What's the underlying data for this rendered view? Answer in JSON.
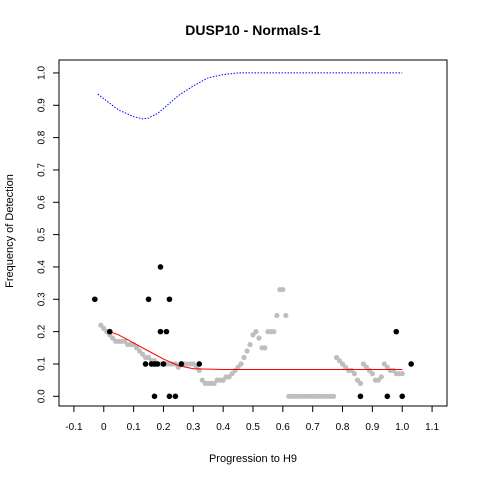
{
  "chart_data": {
    "type": "scatter",
    "title": "DUSP10 - Normals-1",
    "xlabel": "Progression to H9",
    "ylabel": "Frequency of Detection",
    "xlim": [
      -0.15,
      1.15
    ],
    "ylim": [
      -0.03,
      1.04
    ],
    "x_ticks": [
      -0.1,
      0,
      0.1,
      0.2,
      0.3,
      0.4,
      0.5,
      0.6,
      0.7,
      0.8,
      0.9,
      1.0,
      1.1
    ],
    "x_tick_labels": [
      "-0.1",
      "0",
      "0.1",
      "0.2",
      "0.3",
      "0.4",
      "0.5",
      "0.6",
      "0.7",
      "0.8",
      "0.9",
      "1.0",
      "1.1"
    ],
    "y_ticks": [
      0,
      0.1,
      0.2,
      0.3,
      0.4,
      0.5,
      0.6,
      0.7,
      0.8,
      0.9,
      1.0
    ],
    "y_tick_labels": [
      "0.0",
      "0.1",
      "0.2",
      "0.3",
      "0.4",
      "0.5",
      "0.6",
      "0.7",
      "0.8",
      "0.9",
      "1.0"
    ],
    "grid": false,
    "colors": {
      "points": "#000000",
      "smoothed_points": "#bebebe",
      "fit_line": "#ff0000",
      "upper_curve": "#0000ff"
    },
    "series": [
      {
        "kind": "points",
        "x": [
          -0.03,
          0.02,
          0.14,
          0.15,
          0.16,
          0.17,
          0.17,
          0.18,
          0.19,
          0.19,
          0.2,
          0.21,
          0.22,
          0.22,
          0.24,
          0.26,
          0.32,
          0.86,
          0.95,
          0.98,
          1.0,
          1.03
        ],
        "y": [
          0.3,
          0.2,
          0.1,
          0.3,
          0.1,
          0.0,
          0.1,
          0.1,
          0.4,
          0.2,
          0.1,
          0.2,
          0.3,
          0.0,
          0.0,
          0.1,
          0.1,
          0.0,
          0.0,
          0.2,
          0.0,
          0.1
        ]
      },
      {
        "kind": "smoothed_points",
        "x": [
          -0.01,
          0.0,
          0.01,
          0.02,
          0.03,
          0.04,
          0.05,
          0.06,
          0.07,
          0.08,
          0.09,
          0.1,
          0.11,
          0.12,
          0.13,
          0.14,
          0.15,
          0.16,
          0.17,
          0.18,
          0.19,
          0.2,
          0.21,
          0.22,
          0.23,
          0.24,
          0.25,
          0.26,
          0.27,
          0.28,
          0.29,
          0.3,
          0.31,
          0.32,
          0.33,
          0.34,
          0.35,
          0.36,
          0.37,
          0.38,
          0.39,
          0.4,
          0.41,
          0.42,
          0.43,
          0.44,
          0.45,
          0.46,
          0.47,
          0.48,
          0.49,
          0.5,
          0.51,
          0.52,
          0.53,
          0.54,
          0.55,
          0.56,
          0.57,
          0.58,
          0.59,
          0.6,
          0.61,
          0.62,
          0.63,
          0.64,
          0.65,
          0.66,
          0.67,
          0.68,
          0.69,
          0.7,
          0.71,
          0.72,
          0.73,
          0.74,
          0.75,
          0.76,
          0.77,
          0.78,
          0.79,
          0.8,
          0.81,
          0.82,
          0.83,
          0.84,
          0.85,
          0.86,
          0.87,
          0.88,
          0.89,
          0.9,
          0.91,
          0.92,
          0.93,
          0.94,
          0.95,
          0.96,
          0.97,
          0.98,
          0.99,
          1.0
        ],
        "y": [
          0.22,
          0.21,
          0.2,
          0.19,
          0.18,
          0.17,
          0.17,
          0.17,
          0.17,
          0.16,
          0.16,
          0.16,
          0.15,
          0.14,
          0.13,
          0.12,
          0.12,
          0.11,
          0.11,
          0.1,
          0.1,
          0.1,
          0.1,
          0.1,
          0.1,
          0.1,
          0.09,
          0.1,
          0.1,
          0.1,
          0.1,
          0.1,
          0.09,
          0.08,
          0.05,
          0.04,
          0.04,
          0.04,
          0.04,
          0.05,
          0.05,
          0.05,
          0.06,
          0.06,
          0.07,
          0.08,
          0.09,
          0.1,
          0.12,
          0.14,
          0.16,
          0.19,
          0.2,
          0.18,
          0.15,
          0.15,
          0.2,
          0.2,
          0.2,
          0.25,
          0.33,
          0.33,
          0.25,
          0.0,
          0.0,
          0.0,
          0.0,
          0.0,
          0.0,
          0.0,
          0.0,
          0.0,
          0.0,
          0.0,
          0.0,
          0.0,
          0.0,
          0.0,
          0.0,
          0.12,
          0.11,
          0.1,
          0.09,
          0.08,
          0.08,
          0.07,
          0.05,
          0.04,
          0.1,
          0.09,
          0.08,
          0.07,
          0.05,
          0.05,
          0.06,
          0.1,
          0.09,
          0.08,
          0.08,
          0.07,
          0.07,
          0.07
        ]
      },
      {
        "kind": "fit_line",
        "x": [
          0.02,
          0.05,
          0.1,
          0.15,
          0.2,
          0.25,
          0.3,
          0.4,
          0.5,
          0.6,
          0.7,
          0.8,
          0.9,
          1.0
        ],
        "y": [
          0.2,
          0.19,
          0.165,
          0.14,
          0.115,
          0.095,
          0.085,
          0.083,
          0.083,
          0.083,
          0.083,
          0.083,
          0.083,
          0.083
        ]
      },
      {
        "kind": "upper_curve",
        "x": [
          -0.02,
          0.0,
          0.05,
          0.1,
          0.13,
          0.15,
          0.18,
          0.2,
          0.25,
          0.3,
          0.35,
          0.4,
          0.45,
          0.5,
          0.6,
          0.7,
          0.8,
          0.9,
          1.0
        ],
        "y": [
          0.935,
          0.92,
          0.885,
          0.865,
          0.858,
          0.86,
          0.875,
          0.89,
          0.93,
          0.96,
          0.985,
          0.995,
          1.0,
          1.0,
          1.0,
          1.0,
          1.0,
          1.0,
          1.0
        ]
      }
    ]
  }
}
